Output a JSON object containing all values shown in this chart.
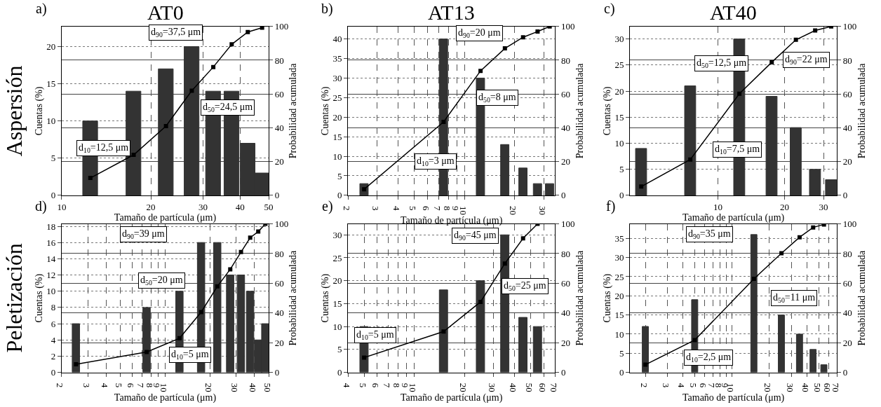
{
  "chart_data": [
    {
      "type": "bar",
      "title": "AT0",
      "xlabel": "Tamaño de partícula (μm)",
      "ylabel": "Cuentas (%)",
      "y2label": "Probabilidad acumulada",
      "log": "x",
      "grid": true,
      "annotations": [
        "a)",
        "Aspersión",
        "d$_{10}$=12,5 μm",
        "d$_{50}$=24,5 μm",
        "d$_{90}$=37,5 μm"
      ],
      "x": [
        12.5,
        17.5,
        22.5,
        27.5,
        32.5,
        37.5,
        42.5,
        47.5
      ],
      "xlim": [
        10,
        50
      ],
      "xticks": [
        10,
        20,
        30,
        40,
        50
      ],
      "ylim": [
        0,
        22.7
      ],
      "yticks": [
        0,
        5,
        10,
        15,
        20
      ],
      "y2lim": [
        0,
        100
      ],
      "y2ticks": [
        0,
        20,
        40,
        60,
        80,
        100
      ],
      "series": [
        {
          "color": "#333333",
          "values": [
            10,
            14,
            17,
            20,
            14,
            14,
            7,
            3
          ]
        },
        {
          "type": "line",
          "axis": "y2",
          "marker": "square",
          "color": "#000000",
          "values": [
            10.3,
            24,
            41,
            62,
            76,
            89.4,
            96.7,
            99.3
          ]
        }
      ]
    },
    {
      "type": "bar",
      "title": "AT13",
      "xlabel": "Tamaño de partícula (μm)",
      "ylabel": "Cuentas (%)",
      "y2label": "Probabilidad acumulada",
      "log": "x",
      "grid": true,
      "annotations": [
        "b)",
        "d$_{10}$=3 μm",
        "d$_{50}$=8 μm",
        "d$_{90}$=20 μm"
      ],
      "x": [
        2.5,
        7.5,
        12.5,
        17.5,
        22.5,
        27.5,
        32.5
      ],
      "xlim": [
        2,
        35
      ],
      "xticks": [
        2,
        3,
        4,
        5,
        6,
        7,
        8,
        9,
        10,
        20,
        30
      ],
      "ylim": [
        0,
        43.2
      ],
      "yticks": [
        0,
        5,
        10,
        15,
        20,
        25,
        30,
        35,
        40
      ],
      "y2lim": [
        0,
        100
      ],
      "y2ticks": [
        0,
        20,
        40,
        60,
        80,
        100
      ],
      "series": [
        {
          "color": "#333333",
          "values": [
            3,
            40,
            30,
            13,
            7,
            3,
            3
          ]
        },
        {
          "type": "line",
          "axis": "y2",
          "marker": "square",
          "color": "#000000",
          "values": [
            3.6,
            43.5,
            73.7,
            87,
            93.6,
            97,
            100
          ]
        }
      ]
    },
    {
      "type": "bar",
      "title": "AT40",
      "xlabel": "Tamaño de partícula (μm)",
      "ylabel": "Cuentas (%)",
      "y2label": "Probabilidad acumulada",
      "log": "x",
      "grid": true,
      "annotations": [
        "c)",
        "d$_{10}$=7,5 μm",
        "d$_{50}$=12,5 μm",
        "d$_{90}$=22 μm"
      ],
      "x": [
        4.5,
        7.5,
        12.5,
        17.5,
        22.5,
        27.5,
        32.5
      ],
      "xlim": [
        4,
        34.5
      ],
      "xticks": [
        10,
        20,
        30
      ],
      "ylim": [
        0,
        32.4
      ],
      "yticks": [
        0,
        5,
        10,
        15,
        20,
        25,
        30
      ],
      "y2lim": [
        0,
        100
      ],
      "y2ticks": [
        0,
        20,
        40,
        60,
        80,
        100
      ],
      "series": [
        {
          "color": "#333333",
          "values": [
            9,
            21,
            30,
            19,
            13,
            5,
            3
          ]
        },
        {
          "type": "line",
          "axis": "y2",
          "marker": "square",
          "color": "#000000",
          "values": [
            5.2,
            21.2,
            60.2,
            78.8,
            92.1,
            97.6,
            100
          ]
        }
      ]
    },
    {
      "type": "bar",
      "xlabel": "Tamaño de partícula (μm)",
      "ylabel": "Cuentas (%)",
      "y2label": "Probabilidad acumulada",
      "log": "x",
      "grid": true,
      "annotations": [
        "d)",
        "Peletización",
        "d$_{10}$=5 μm",
        "d$_{50}$=20 μm",
        "d$_{90}$=39 μm"
      ],
      "x": [
        2.5,
        7.5,
        12.5,
        17.5,
        22.5,
        27.5,
        32.5,
        37.5,
        42.5,
        47.5
      ],
      "xlim": [
        2,
        50
      ],
      "xticks": [
        2,
        3,
        4,
        5,
        6,
        7,
        8,
        9,
        10,
        20,
        30,
        40,
        50
      ],
      "ylim": [
        0,
        18.3
      ],
      "yticks": [
        0,
        2,
        4,
        6,
        8,
        10,
        12,
        14,
        16,
        18
      ],
      "y2lim": [
        0,
        100
      ],
      "y2ticks": [
        0,
        20,
        40,
        60,
        80,
        100
      ],
      "series": [
        {
          "color": "#333333",
          "values": [
            6,
            8,
            10,
            16,
            16,
            12,
            12,
            10,
            4,
            6
          ]
        },
        {
          "type": "line",
          "axis": "y2",
          "marker": "square",
          "color": "#000000",
          "values": [
            5.5,
            13.7,
            23,
            40.6,
            57.9,
            69.4,
            81,
            90.7,
            94.8,
            100
          ]
        }
      ]
    },
    {
      "type": "bar",
      "xlabel": "Tamaño de partícula (μm)",
      "ylabel": "Cuentas (%)",
      "y2label": "Probabilidad acumulada",
      "log": "x",
      "grid": true,
      "annotations": [
        "e)",
        "d$_{10}$=5 μm",
        "d$_{50}$=25 μm",
        "d$_{90}$=45 μm"
      ],
      "x": [
        5,
        15,
        25,
        35,
        45,
        55
      ],
      "xlim": [
        4,
        70
      ],
      "xticks": [
        4,
        5,
        6,
        7,
        8,
        9,
        10,
        20,
        30,
        40,
        50,
        60,
        70
      ],
      "ylim": [
        0,
        32.4
      ],
      "yticks": [
        0,
        5,
        10,
        15,
        20,
        25,
        30
      ],
      "y2lim": [
        0,
        100
      ],
      "y2ticks": [
        0,
        20,
        40,
        60,
        80,
        100
      ],
      "series": [
        {
          "color": "#333333",
          "values": [
            10,
            18,
            20,
            30,
            12,
            10
          ]
        },
        {
          "type": "line",
          "axis": "y2",
          "marker": "square",
          "color": "#000000",
          "values": [
            10,
            27.5,
            47.5,
            73.3,
            90.2,
            100
          ]
        }
      ]
    },
    {
      "type": "bar",
      "xlabel": "Tamaño de partícula (μm)",
      "ylabel": "Cuentas (%)",
      "y2label": "Probabilidad acumulada",
      "log": "x",
      "grid": true,
      "annotations": [
        "f)",
        "d$_{10}$=2,5 μm",
        "d$_{50}$=11 μm",
        "d$_{90}$=35 μm"
      ],
      "x": [
        2,
        5,
        15,
        25,
        35,
        45,
        55
      ],
      "xlim": [
        1.5,
        70
      ],
      "xticks": [
        2,
        3,
        4,
        5,
        6,
        7,
        8,
        9,
        10,
        20,
        30,
        40,
        50,
        60,
        70
      ],
      "ylim": [
        0,
        38.8
      ],
      "yticks": [
        0,
        5,
        10,
        15,
        20,
        25,
        30,
        35
      ],
      "y2lim": [
        0,
        100
      ],
      "y2ticks": [
        0,
        20,
        40,
        60,
        80,
        100
      ],
      "series": [
        {
          "color": "#333333",
          "values": [
            12,
            19,
            36,
            15,
            10,
            6,
            2
          ]
        },
        {
          "type": "line",
          "axis": "y2",
          "marker": "square",
          "color": "#000000",
          "values": [
            5.2,
            21.8,
            63,
            80.2,
            91,
            97.6,
            99.6
          ]
        }
      ]
    }
  ]
}
